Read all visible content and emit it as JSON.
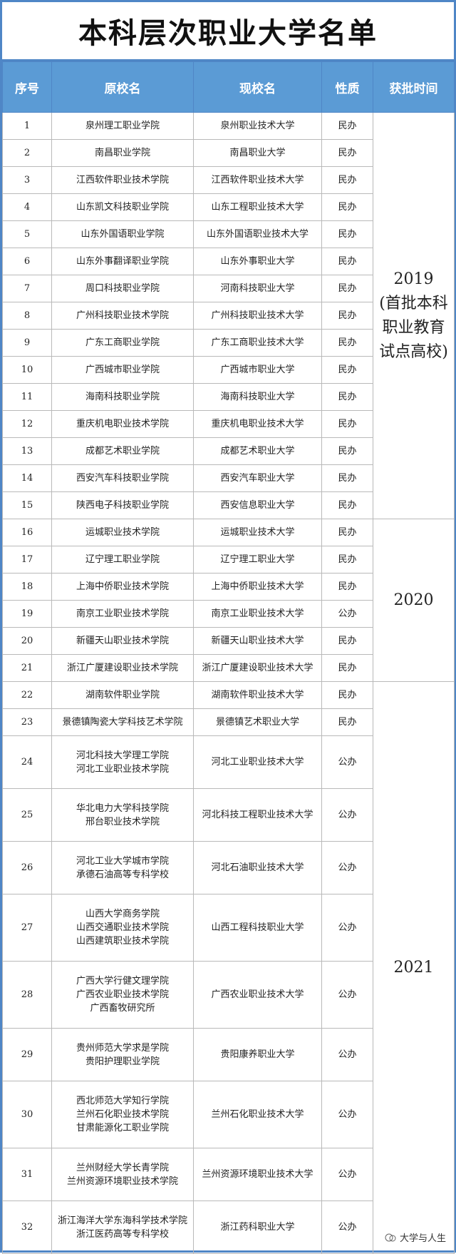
{
  "header": {
    "title": "本科层次职业大学名单"
  },
  "table": {
    "columns": [
      "序号",
      "原校名",
      "现校名",
      "性质",
      "获批时间"
    ],
    "groups": [
      {
        "year": "2019",
        "note": "(首批本科职业教育试点高校)",
        "rows": [
          {
            "no": "1",
            "original": [
              "泉州理工职业学院"
            ],
            "current": "泉州职业技术大学",
            "nature": "民办"
          },
          {
            "no": "2",
            "original": [
              "南昌职业学院"
            ],
            "current": "南昌职业大学",
            "nature": "民办"
          },
          {
            "no": "3",
            "original": [
              "江西软件职业技术学院"
            ],
            "current": "江西软件职业技术大学",
            "nature": "民办"
          },
          {
            "no": "4",
            "original": [
              "山东凯文科技职业学院"
            ],
            "current": "山东工程职业技术大学",
            "nature": "民办"
          },
          {
            "no": "5",
            "original": [
              "山东外国语职业学院"
            ],
            "current": "山东外国语职业技术大学",
            "nature": "民办"
          },
          {
            "no": "6",
            "original": [
              "山东外事翻译职业学院"
            ],
            "current": "山东外事职业大学",
            "nature": "民办"
          },
          {
            "no": "7",
            "original": [
              "周口科技职业学院"
            ],
            "current": "河南科技职业大学",
            "nature": "民办"
          },
          {
            "no": "8",
            "original": [
              "广州科技职业技术学院"
            ],
            "current": "广州科技职业技术大学",
            "nature": "民办"
          },
          {
            "no": "9",
            "original": [
              "广东工商职业学院"
            ],
            "current": "广东工商职业技术大学",
            "nature": "民办"
          },
          {
            "no": "10",
            "original": [
              "广西城市职业学院"
            ],
            "current": "广西城市职业大学",
            "nature": "民办"
          },
          {
            "no": "11",
            "original": [
              "海南科技职业学院"
            ],
            "current": "海南科技职业大学",
            "nature": "民办"
          },
          {
            "no": "12",
            "original": [
              "重庆机电职业技术学院"
            ],
            "current": "重庆机电职业技术大学",
            "nature": "民办"
          },
          {
            "no": "13",
            "original": [
              "成都艺术职业学院"
            ],
            "current": "成都艺术职业大学",
            "nature": "民办"
          },
          {
            "no": "14",
            "original": [
              "西安汽车科技职业学院"
            ],
            "current": "西安汽车职业大学",
            "nature": "民办"
          },
          {
            "no": "15",
            "original": [
              "陕西电子科技职业学院"
            ],
            "current": "西安信息职业大学",
            "nature": "民办"
          }
        ]
      },
      {
        "year": "2020",
        "rows": [
          {
            "no": "16",
            "original": [
              "运城职业技术学院"
            ],
            "current": "运城职业技术大学",
            "nature": "民办"
          },
          {
            "no": "17",
            "original": [
              "辽宁理工职业学院"
            ],
            "current": "辽宁理工职业大学",
            "nature": "民办"
          },
          {
            "no": "18",
            "original": [
              "上海中侨职业技术学院"
            ],
            "current": "上海中侨职业技术大学",
            "nature": "民办"
          },
          {
            "no": "19",
            "original": [
              "南京工业职业技术学院"
            ],
            "current": "南京工业职业技术大学",
            "nature": "公办"
          },
          {
            "no": "20",
            "original": [
              "新疆天山职业技术学院"
            ],
            "current": "新疆天山职业技术大学",
            "nature": "民办"
          },
          {
            "no": "21",
            "original": [
              "浙江广厦建设职业技术学院"
            ],
            "current": "浙江广厦建设职业技术大学",
            "nature": "民办"
          }
        ]
      },
      {
        "year": "2021",
        "rows": [
          {
            "no": "22",
            "original": [
              "湖南软件职业学院"
            ],
            "current": "湖南软件职业技术大学",
            "nature": "民办"
          },
          {
            "no": "23",
            "original": [
              "景德镇陶瓷大学科技艺术学院"
            ],
            "current": "景德镇艺术职业大学",
            "nature": "民办"
          },
          {
            "no": "24",
            "original": [
              "河北科技大学理工学院",
              "河北工业职业技术学院"
            ],
            "current": "河北工业职业技术大学",
            "nature": "公办"
          },
          {
            "no": "25",
            "original": [
              "华北电力大学科技学院",
              "邢台职业技术学院"
            ],
            "current": "河北科技工程职业技术大学",
            "nature": "公办"
          },
          {
            "no": "26",
            "original": [
              "河北工业大学城市学院",
              "承德石油高等专科学校"
            ],
            "current": "河北石油职业技术大学",
            "nature": "公办"
          },
          {
            "no": "27",
            "original": [
              "山西大学商务学院",
              "山西交通职业技术学院",
              "山西建筑职业技术学院"
            ],
            "current": "山西工程科技职业大学",
            "nature": "公办"
          },
          {
            "no": "28",
            "original": [
              "广西大学行健文理学院",
              "广西农业职业技术学院",
              "广西畜牧研究所"
            ],
            "current": "广西农业职业技术大学",
            "nature": "公办"
          },
          {
            "no": "29",
            "original": [
              "贵州师范大学求是学院",
              "贵阳护理职业学院"
            ],
            "current": "贵阳康养职业大学",
            "nature": "公办"
          },
          {
            "no": "30",
            "original": [
              "西北师范大学知行学院",
              "兰州石化职业技术学院",
              "甘肃能源化工职业学院"
            ],
            "current": "兰州石化职业技术大学",
            "nature": "公办"
          },
          {
            "no": "31",
            "original": [
              "兰州财经大学长青学院",
              "兰州资源环境职业技术学院"
            ],
            "current": "兰州资源环境职业技术大学",
            "nature": "公办"
          },
          {
            "no": "32",
            "original": [
              "浙江海洋大学东海科学技术学院",
              "浙江医药高等专科学校"
            ],
            "current": "浙江药科职业大学",
            "nature": "公办"
          }
        ]
      }
    ]
  },
  "footer": {
    "brand": "大学与人生"
  }
}
